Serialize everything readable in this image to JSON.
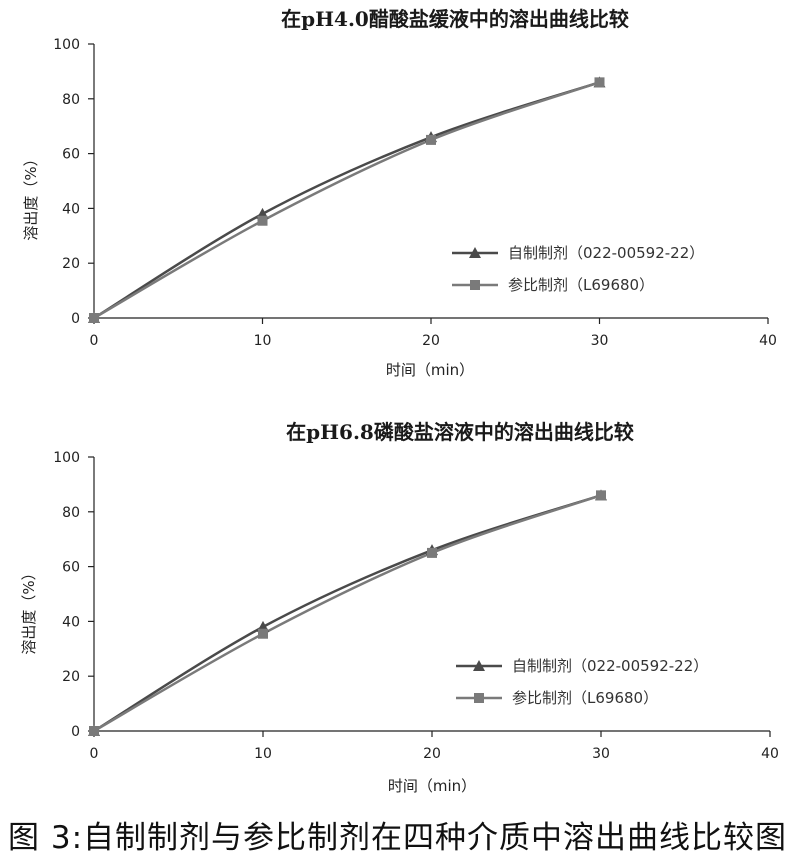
{
  "chart_data": [
    {
      "type": "line",
      "title": "在pH4.0醋酸盐缓液中的溶出曲线比较",
      "xlabel": "时间（min）",
      "ylabel": "溶出度（%）",
      "xlim": [
        0,
        40
      ],
      "ylim": [
        0,
        100
      ],
      "xticks": [
        0,
        10,
        20,
        30,
        40
      ],
      "yticks": [
        0,
        20,
        40,
        60,
        80,
        100
      ],
      "grid": false,
      "legend_position": "right",
      "x": [
        0,
        10,
        20,
        30
      ],
      "series": [
        {
          "name": "自制制剂（022-00592-22）",
          "marker": "triangle",
          "color": "#4a4a4a",
          "values": [
            0,
            38,
            66,
            86
          ]
        },
        {
          "name": "参比制剂（L69680）",
          "marker": "square",
          "color": "#7a7a7a",
          "values": [
            0,
            35.5,
            65,
            86
          ]
        }
      ]
    },
    {
      "type": "line",
      "title": "在pH6.8磷酸盐溶液中的溶出曲线比较",
      "xlabel": "时间（min）",
      "ylabel": "溶出度（%）",
      "xlim": [
        0,
        40
      ],
      "ylim": [
        0,
        100
      ],
      "xticks": [
        0,
        10,
        20,
        30,
        40
      ],
      "yticks": [
        0,
        20,
        40,
        60,
        80,
        100
      ],
      "grid": false,
      "legend_position": "right",
      "x": [
        0,
        10,
        20,
        30
      ],
      "series": [
        {
          "name": "自制制剂（022-00592-22）",
          "marker": "triangle",
          "color": "#4a4a4a",
          "values": [
            0,
            38,
            66,
            86
          ]
        },
        {
          "name": "参比制剂（L69680）",
          "marker": "square",
          "color": "#7a7a7a",
          "values": [
            0,
            35.5,
            65,
            86
          ]
        }
      ]
    }
  ],
  "caption": "图 3:自制制剂与参比制剂在四种介质中溶出曲线比较图"
}
